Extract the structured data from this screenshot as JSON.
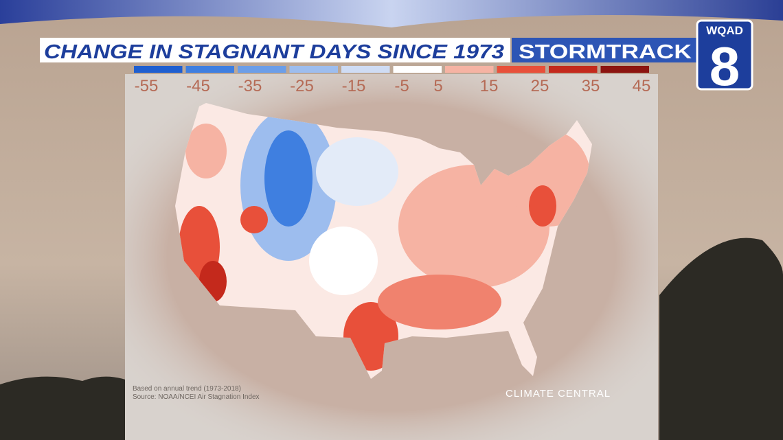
{
  "header": {
    "title": "CHANGE IN STAGNANT DAYS SINCE 1973",
    "brand": "STORMTRACK",
    "station": "WQAD",
    "channel": "8"
  },
  "legend": {
    "colors": [
      "#1f5fd0",
      "#3f7fe0",
      "#6c9ee8",
      "#9dbdee",
      "#cfdcf4",
      "#ffffff",
      "#f6b3a3",
      "#e8503a",
      "#c4291c",
      "#8c1410"
    ],
    "labels": [
      -55,
      -45,
      -35,
      -25,
      -15,
      -5,
      5,
      15,
      25,
      35,
      45
    ]
  },
  "notes": [
    "Based on annual trend (1973-2018)",
    "Source: NOAA/NCEI Air Stagnation Index"
  ],
  "credit": "CLIMATE CENTRAL"
}
